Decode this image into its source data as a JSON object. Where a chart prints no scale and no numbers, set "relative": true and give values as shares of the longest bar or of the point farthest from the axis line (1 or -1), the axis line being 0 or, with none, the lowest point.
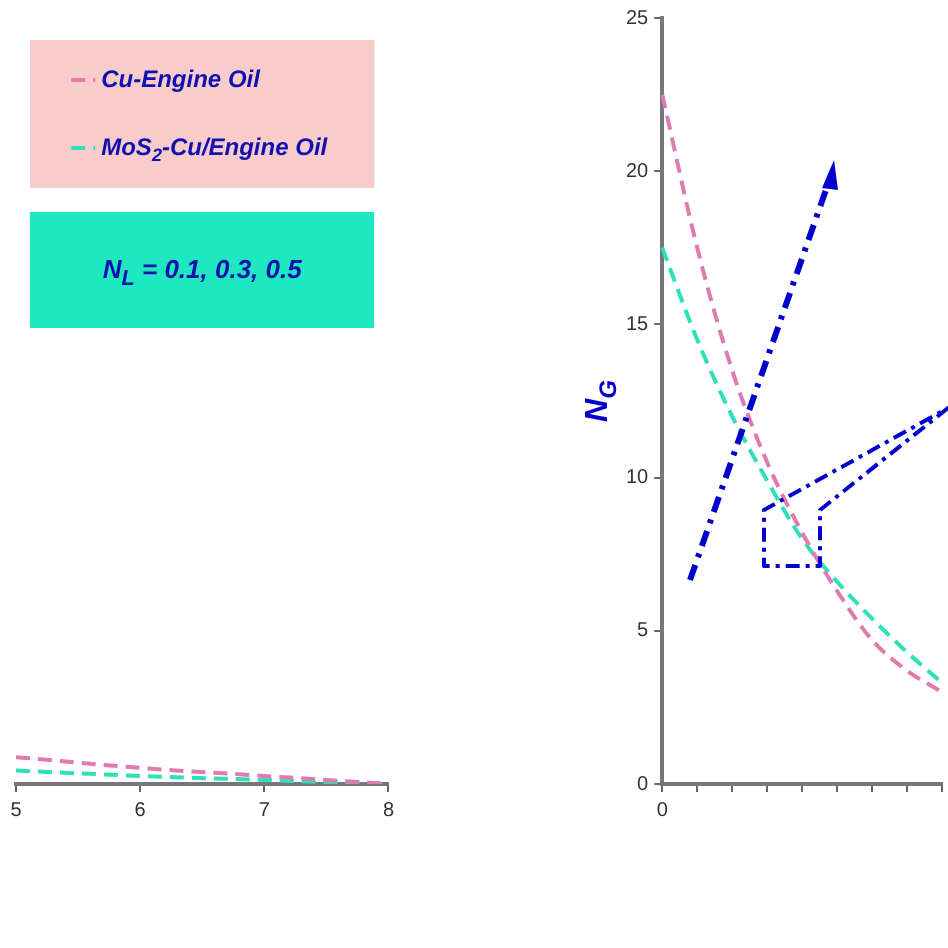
{
  "chart_data": [
    {
      "type": "line",
      "x": [
        5,
        6,
        7,
        8
      ],
      "xlim": [
        5,
        8
      ],
      "xticks": [
        5,
        6,
        7,
        8
      ],
      "relative": true,
      "tick_labels": "x",
      "grid": false,
      "legend": "top",
      "line_style": "dashed",
      "marker": "none",
      "annotations": [
        "N$_{L}$ = 0.1, 0.3, 0.5"
      ],
      "series": [
        {
          "name": "Cu-Engine Oil",
          "color": "#e07ab0",
          "values": [
            1,
            0.6,
            0.3,
            0
          ]
        },
        {
          "name": "MoS$_{2}$-Cu/Engine Oil",
          "color": "#2ee0b8",
          "values": [
            0.5,
            0.3,
            0.15,
            0
          ]
        }
      ]
    },
    {
      "type": "line",
      "categories": [
        "0",
        null,
        null,
        null,
        null,
        null,
        null,
        null,
        null
      ],
      "ylabel": "N$_{G}$",
      "ylim": [
        0,
        25
      ],
      "yticks": [
        0,
        5,
        10,
        15,
        20,
        25
      ],
      "grid": false,
      "legend": false,
      "line_style": "dashed",
      "marker": "none",
      "series": [
        {
          "color": "#e07ab0",
          "values": [
            22.5,
            17.5,
            13.5,
            10.5,
            8.2,
            6.3,
            4.7,
            3.7,
            3.0
          ]
        },
        {
          "color": "#2ee0b8",
          "values": [
            17.5,
            14.5,
            12.0,
            9.9,
            8.0,
            6.6,
            5.4,
            4.3,
            3.3
          ]
        }
      ]
    }
  ]
}
